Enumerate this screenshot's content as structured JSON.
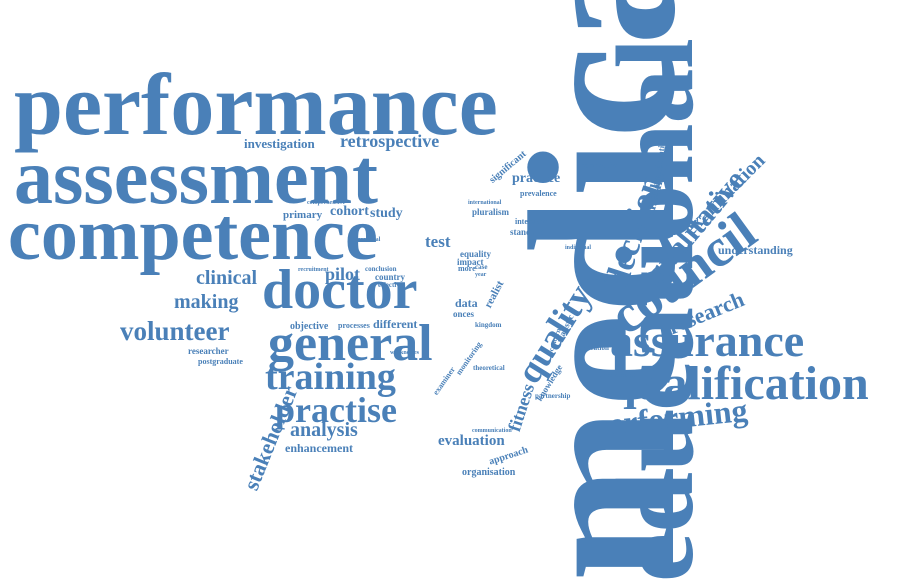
{
  "color": "#4a80b8",
  "words": [
    "performance",
    "assessment",
    "competence",
    "medical",
    "educational",
    "doctor",
    "general",
    "council",
    "assurance",
    "qualification",
    "training",
    "practise",
    "volunteer",
    "quality",
    "performing",
    "qualitative",
    "decision",
    "research",
    "examination",
    "method",
    "analysis",
    "stakeholder",
    "fitness",
    "evaluation",
    "clinical",
    "making",
    "investigation",
    "retrospective",
    "cohort",
    "study",
    "primary",
    "pilot",
    "test",
    "practice",
    "prevalence",
    "perspective",
    "recommendation",
    "understanding",
    "enhancement",
    "approach",
    "organisation",
    "background",
    "knowledge",
    "partnership",
    "improvement",
    "implication",
    "communication",
    "theoretical",
    "researcher",
    "postgraduate",
    "objective",
    "processes",
    "different",
    "significant",
    "comprehensive",
    "recruitment",
    "conclusion",
    "country",
    "effective",
    "sectional",
    "data",
    "onces",
    "kingdom",
    "equality",
    "pluralism",
    "international",
    "interview",
    "standard",
    "impact",
    "more",
    "case",
    "statistic",
    "realist",
    "concern",
    "monitoring",
    "examiner",
    "individual",
    "weaknesses",
    "regulatory",
    "year"
  ]
}
